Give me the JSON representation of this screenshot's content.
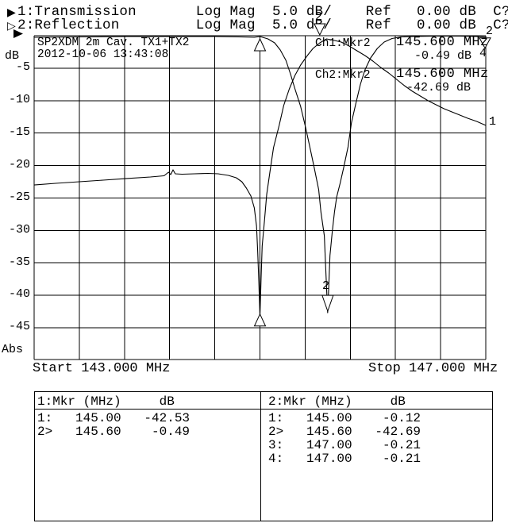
{
  "header": {
    "ch1_icon": "▶",
    "ch2_icon": "▷",
    "line1": "1:Transmission       Log Mag  5.0 dB/    Ref   0.00 dB  C?",
    "line2": "2:Reflection         Log Mag  5.0 dB/    Ref   0.00 dB  C?"
  },
  "plot": {
    "title": "SP2XDM 2m Cav. TX1+TX2",
    "timestamp": "2012-10-06 13:43:08",
    "y_unit": "dB",
    "y_ticks": [
      "-5",
      "-10",
      "-15",
      "-20",
      "-25",
      "-30",
      "-35",
      "-40",
      "-45"
    ],
    "abs_label": "Abs",
    "x_start_label": "Start 143.000 MHz",
    "x_stop_label": "Stop 147.000 MHz",
    "ch1": {
      "label": "Ch1:Mkr2",
      "freq": "145.600 MHz",
      "value": "-0.49 dB"
    },
    "ch2": {
      "label": "Ch2:Mkr2",
      "freq": "145.600 MHz",
      "value": "-42.69 dB"
    },
    "trace1_end_label": "1",
    "trace2_end_label": "2",
    "marker2_top_label": "2",
    "marker2_dip_label": "2",
    "marker34_right_label": "4"
  },
  "tables": {
    "left": {
      "header": "1:Mkr (MHz)     dB",
      "rows": [
        "1:   145.00   -42.53",
        "2>   145.60    -0.49"
      ]
    },
    "right": {
      "header": "2:Mkr (MHz)     dB",
      "rows": [
        "1:   145.00    -0.12",
        "2>   145.60   -42.69",
        "3:   147.00    -0.21",
        "4:   147.00    -0.21"
      ]
    }
  },
  "colors": {
    "foreground": "#000000",
    "background": "#ffffff"
  },
  "chart_data": {
    "type": "line",
    "title": "SP2XDM 2m Cav. TX1+TX2",
    "xlabel_start": "Start 143.000 MHz",
    "xlabel_stop": "Stop 147.000 MHz",
    "ylabel": "dB",
    "x_axis": {
      "min": 143.0,
      "max": 147.0,
      "unit": "MHz",
      "divisions": 10
    },
    "y_axis": {
      "min": -45,
      "max": 0,
      "tick_step": 5,
      "unit": "dB",
      "extra_row": "Abs"
    },
    "grid": true,
    "series": [
      {
        "name": "1:Transmission",
        "format": "Log Mag 5.0 dB/ Ref 0.00 dB",
        "points": [
          [
            143.0,
            -23.0
          ],
          [
            143.19,
            -22.74
          ],
          [
            143.4,
            -22.5
          ],
          [
            143.61,
            -22.25
          ],
          [
            143.82,
            -22.0
          ],
          [
            144.03,
            -21.77
          ],
          [
            144.15,
            -21.58
          ],
          [
            144.19,
            -21.03
          ],
          [
            144.21,
            -21.4
          ],
          [
            144.23,
            -20.66
          ],
          [
            144.25,
            -21.28
          ],
          [
            144.31,
            -21.34
          ],
          [
            144.42,
            -21.28
          ],
          [
            144.54,
            -21.22
          ],
          [
            144.63,
            -21.28
          ],
          [
            144.72,
            -21.52
          ],
          [
            144.79,
            -21.89
          ],
          [
            144.84,
            -22.5
          ],
          [
            144.88,
            -23.48
          ],
          [
            144.92,
            -24.7
          ],
          [
            144.95,
            -26.54
          ],
          [
            144.97,
            -29.35
          ],
          [
            144.98,
            -33.38
          ],
          [
            144.99,
            -38.03
          ],
          [
            145.0,
            -43.29
          ],
          [
            145.01,
            -37.54
          ],
          [
            145.02,
            -32.4
          ],
          [
            145.04,
            -28.49
          ],
          [
            145.06,
            -24.46
          ],
          [
            145.09,
            -20.79
          ],
          [
            145.12,
            -17.24
          ],
          [
            145.17,
            -13.82
          ],
          [
            145.21,
            -10.76
          ],
          [
            145.26,
            -8.19
          ],
          [
            145.31,
            -6.11
          ],
          [
            145.36,
            -4.52
          ],
          [
            145.42,
            -3.06
          ],
          [
            145.47,
            -1.96
          ],
          [
            145.53,
            -1.1
          ],
          [
            145.59,
            -0.49
          ],
          [
            145.66,
            -0.73
          ],
          [
            145.72,
            -0.98
          ],
          [
            145.79,
            -1.59
          ],
          [
            145.86,
            -2.32
          ],
          [
            145.93,
            -3.06
          ],
          [
            146.0,
            -3.91
          ],
          [
            146.07,
            -4.89
          ],
          [
            146.14,
            -5.75
          ],
          [
            146.21,
            -6.72
          ],
          [
            146.28,
            -7.7
          ],
          [
            146.35,
            -8.56
          ],
          [
            146.42,
            -9.29
          ],
          [
            146.49,
            -10.03
          ],
          [
            146.56,
            -10.64
          ],
          [
            146.63,
            -11.25
          ],
          [
            146.7,
            -11.74
          ],
          [
            146.77,
            -12.23
          ],
          [
            146.84,
            -12.72
          ],
          [
            146.92,
            -13.21
          ],
          [
            147.0,
            -13.82
          ]
        ]
      },
      {
        "name": "2:Reflection",
        "format": "Log Mag 5.0 dB/ Ref 0.00 dB",
        "points": [
          [
            143.0,
            -0.24
          ],
          [
            143.4,
            -0.18
          ],
          [
            143.82,
            -0.12
          ],
          [
            144.24,
            -0.12
          ],
          [
            144.6,
            -0.12
          ],
          [
            144.81,
            -0.18
          ],
          [
            144.95,
            -0.24
          ],
          [
            145.0,
            -0.12
          ],
          [
            145.07,
            -0.49
          ],
          [
            145.13,
            -1.1
          ],
          [
            145.18,
            -2.2
          ],
          [
            145.23,
            -3.79
          ],
          [
            145.27,
            -5.87
          ],
          [
            145.31,
            -8.19
          ],
          [
            145.36,
            -10.88
          ],
          [
            145.4,
            -13.82
          ],
          [
            145.44,
            -17.0
          ],
          [
            145.48,
            -20.3
          ],
          [
            145.52,
            -23.72
          ],
          [
            145.54,
            -27.15
          ],
          [
            145.57,
            -30.81
          ],
          [
            145.58,
            -34.85
          ],
          [
            145.59,
            -38.76
          ],
          [
            145.6,
            -42.69
          ],
          [
            145.61,
            -38.27
          ],
          [
            145.62,
            -33.87
          ],
          [
            145.64,
            -30.32
          ],
          [
            145.66,
            -27.15
          ],
          [
            145.68,
            -24.82
          ],
          [
            145.71,
            -22.74
          ],
          [
            145.74,
            -20.42
          ],
          [
            145.78,
            -17.12
          ],
          [
            145.81,
            -13.45
          ],
          [
            145.85,
            -10.39
          ],
          [
            145.89,
            -7.46
          ],
          [
            145.93,
            -5.26
          ],
          [
            145.98,
            -3.42
          ],
          [
            146.04,
            -1.96
          ],
          [
            146.1,
            -0.98
          ],
          [
            146.17,
            -0.43
          ],
          [
            146.25,
            -0.18
          ],
          [
            146.35,
            -0.12
          ],
          [
            146.56,
            -0.06
          ],
          [
            146.77,
            -0.06
          ],
          [
            146.92,
            -0.12
          ],
          [
            147.0,
            -0.21
          ]
        ]
      }
    ],
    "markers": [
      {
        "id": "1",
        "trace": 1,
        "freq_mhz": 145.0,
        "db": -42.53,
        "symbol": "triangle-up",
        "placement": "below-with-tick"
      },
      {
        "id": "2",
        "trace": 1,
        "freq_mhz": 145.6,
        "db": -0.49,
        "symbol": "triangle-down",
        "placement": "above-left"
      },
      {
        "id": "1",
        "trace": 2,
        "freq_mhz": 145.0,
        "db": -0.12,
        "symbol": "triangle-up",
        "placement": "below-with-tick"
      },
      {
        "id": "2",
        "trace": 2,
        "freq_mhz": 145.6,
        "db": -42.69,
        "symbol": "arrow-down",
        "placement": "above"
      },
      {
        "id": "4",
        "trace": 2,
        "freq_mhz": 147.0,
        "db": -0.21,
        "symbol": "triangle-down",
        "placement": "below"
      }
    ]
  }
}
